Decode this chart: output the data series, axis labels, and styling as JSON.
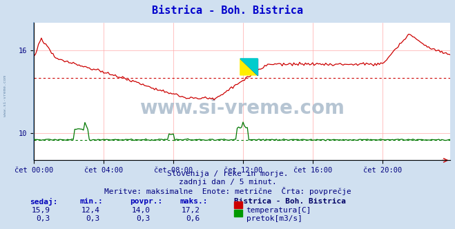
{
  "title": "Bistrica - Boh. Bistrica",
  "title_color": "#0000cc",
  "bg_color": "#d0e0f0",
  "plot_bg_color": "#ffffff",
  "grid_color": "#ffaaaa",
  "text_color": "#000080",
  "xlim": [
    0,
    287
  ],
  "ylim_temp_min": 8,
  "ylim_temp_max": 18,
  "ylim_flow_min": 0,
  "ylim_flow_max": 2.0,
  "ytick_values": [
    10,
    16
  ],
  "xtick_labels": [
    "čet 00:00",
    "čet 04:00",
    "čet 08:00",
    "čet 12:00",
    "čet 16:00",
    "čet 20:00"
  ],
  "xtick_positions": [
    0,
    48,
    96,
    144,
    192,
    240
  ],
  "temp_color": "#cc0000",
  "flow_color": "#007700",
  "avg_temp": 14.0,
  "avg_flow": 0.3,
  "watermark_text": "www.si-vreme.com",
  "watermark_color": "#aabbcc",
  "side_text": "www.si-vreme.com",
  "footer_line1": "Slovenija / reke in morje.",
  "footer_line2": "zadnji dan / 5 minut.",
  "footer_line3": "Meritve: maksimalne  Enote: metrične  Črta: povprečje",
  "sedaj_label": "sedaj:",
  "min_label": "min.:",
  "povpr_label": "povpr.:",
  "maks_label": "maks.:",
  "station_label": "Bistrica - Boh. Bistrica",
  "temp_sedaj": "15,9",
  "temp_min": "12,4",
  "temp_povpr": "14,0",
  "temp_maks": "17,2",
  "flow_sedaj": "0,3",
  "flow_min": "0,3",
  "flow_povpr": "0,3",
  "flow_maks": "0,6",
  "temp_label": "temperatura[C]",
  "flow_label": "pretok[m3/s]"
}
